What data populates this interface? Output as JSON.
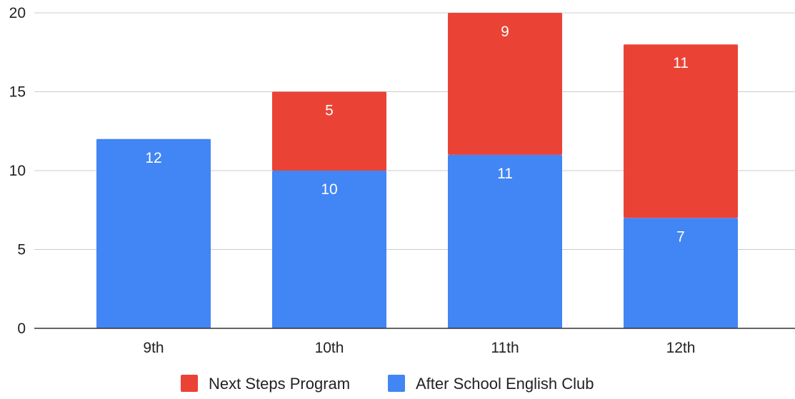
{
  "chart_data": {
    "type": "bar",
    "stacked": true,
    "categories": [
      "9th",
      "10th",
      "11th",
      "12th"
    ],
    "series": [
      {
        "name": "After School English Club",
        "values": [
          12,
          10,
          11,
          7
        ],
        "color": "#4285F4"
      },
      {
        "name": "Next Steps Program",
        "values": [
          0,
          5,
          9,
          11
        ],
        "color": "#EA4335"
      }
    ],
    "title": "",
    "xlabel": "",
    "ylabel": "",
    "ylim": [
      0,
      20
    ],
    "yticks": [
      0,
      5,
      10,
      15,
      20
    ],
    "grid": true,
    "legend_position": "bottom",
    "legend_order": [
      "Next Steps Program",
      "After School English Club"
    ],
    "data_labels": true
  },
  "colors": {
    "grid": "#cccccc",
    "axis": "#333333",
    "label_text": "#222222",
    "data_label_text": "#ffffff"
  }
}
